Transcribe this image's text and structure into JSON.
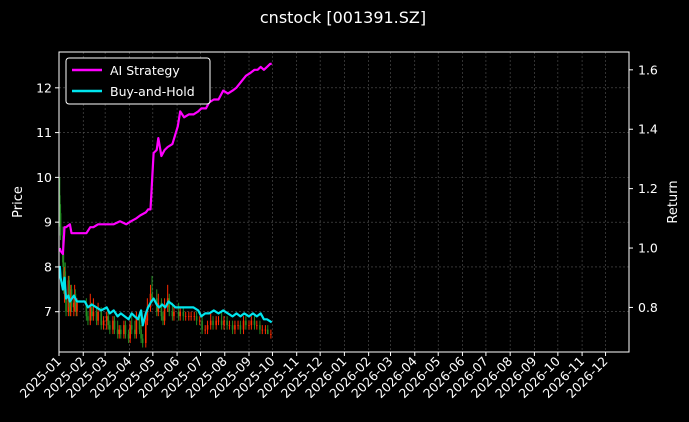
{
  "chart_data": {
    "type": "line",
    "title": "cnstock [001391.SZ]",
    "ylabel_left": "Price",
    "ylabel_right": "Return",
    "ylim_left": [
      6.1,
      12.8
    ],
    "ylim_right": [
      0.65,
      1.66
    ],
    "yticks_left": [
      7,
      8,
      9,
      10,
      11,
      12
    ],
    "yticks_right": [
      0.8,
      1.0,
      1.2,
      1.4,
      1.6
    ],
    "ytick_labels_right": [
      "0.8",
      "1.0",
      "1.2",
      "1.4",
      "1.6"
    ],
    "x_start": "2025-01-01",
    "x_end": "2026-12-31",
    "xtick_labels": [
      "2025-01",
      "2025-02",
      "2025-03",
      "2025-04",
      "2025-05",
      "2025-06",
      "2025-07",
      "2025-08",
      "2025-09",
      "2025-10",
      "2025-11",
      "2025-12",
      "2026-01",
      "2026-02",
      "2026-03",
      "2026-04",
      "2026-05",
      "2026-06",
      "2026-07",
      "2026-08",
      "2026-09",
      "2026-10",
      "2026-11",
      "2026-12"
    ],
    "grid": true,
    "legend_position": "upper-left",
    "colors": {
      "ai_strategy": "#ff00ff",
      "buy_and_hold": "#00e5ee",
      "candle_up": "#ff2a00",
      "candle_down": "#228b22",
      "grid": "#555555",
      "axes": "#ffffff"
    },
    "series": [
      {
        "name": "AI Strategy",
        "axis": "right",
        "points": [
          [
            "2025-01-02",
            1.0
          ],
          [
            "2025-01-03",
            0.99
          ],
          [
            "2025-01-06",
            0.98
          ],
          [
            "2025-01-08",
            1.07
          ],
          [
            "2025-01-10",
            1.07
          ],
          [
            "2025-01-15",
            1.08
          ],
          [
            "2025-01-17",
            1.05
          ],
          [
            "2025-01-22",
            1.05
          ],
          [
            "2025-02-05",
            1.05
          ],
          [
            "2025-02-10",
            1.07
          ],
          [
            "2025-02-14",
            1.07
          ],
          [
            "2025-02-20",
            1.08
          ],
          [
            "2025-03-05",
            1.08
          ],
          [
            "2025-03-12",
            1.08
          ],
          [
            "2025-03-20",
            1.09
          ],
          [
            "2025-03-28",
            1.08
          ],
          [
            "2025-04-03",
            1.09
          ],
          [
            "2025-04-10",
            1.1
          ],
          [
            "2025-04-15",
            1.11
          ],
          [
            "2025-04-22",
            1.12
          ],
          [
            "2025-04-25",
            1.13
          ],
          [
            "2025-04-28",
            1.13
          ],
          [
            "2025-05-02",
            1.32
          ],
          [
            "2025-05-06",
            1.33
          ],
          [
            "2025-05-08",
            1.37
          ],
          [
            "2025-05-12",
            1.31
          ],
          [
            "2025-05-16",
            1.33
          ],
          [
            "2025-05-20",
            1.34
          ],
          [
            "2025-05-26",
            1.35
          ],
          [
            "2025-06-02",
            1.41
          ],
          [
            "2025-06-05",
            1.46
          ],
          [
            "2025-06-10",
            1.44
          ],
          [
            "2025-06-16",
            1.45
          ],
          [
            "2025-06-22",
            1.45
          ],
          [
            "2025-06-28",
            1.46
          ],
          [
            "2025-07-02",
            1.47
          ],
          [
            "2025-07-08",
            1.47
          ],
          [
            "2025-07-12",
            1.49
          ],
          [
            "2025-07-18",
            1.5
          ],
          [
            "2025-07-24",
            1.5
          ],
          [
            "2025-07-30",
            1.53
          ],
          [
            "2025-08-05",
            1.52
          ],
          [
            "2025-08-11",
            1.53
          ],
          [
            "2025-08-16",
            1.54
          ],
          [
            "2025-08-22",
            1.56
          ],
          [
            "2025-08-28",
            1.58
          ],
          [
            "2025-09-03",
            1.59
          ],
          [
            "2025-09-08",
            1.6
          ],
          [
            "2025-09-12",
            1.6
          ],
          [
            "2025-09-16",
            1.61
          ],
          [
            "2025-09-20",
            1.6
          ],
          [
            "2025-09-24",
            1.61
          ],
          [
            "2025-09-28",
            1.62
          ],
          [
            "2025-09-30",
            1.62
          ]
        ]
      },
      {
        "name": "Buy-and-Hold",
        "axis": "right",
        "points": [
          [
            "2025-01-02",
            0.94
          ],
          [
            "2025-01-03",
            0.9
          ],
          [
            "2025-01-06",
            0.86
          ],
          [
            "2025-01-08",
            0.9
          ],
          [
            "2025-01-10",
            0.83
          ],
          [
            "2025-01-13",
            0.84
          ],
          [
            "2025-01-15",
            0.82
          ],
          [
            "2025-01-20",
            0.84
          ],
          [
            "2025-01-24",
            0.82
          ],
          [
            "2025-02-03",
            0.82
          ],
          [
            "2025-02-07",
            0.8
          ],
          [
            "2025-02-12",
            0.81
          ],
          [
            "2025-02-18",
            0.8
          ],
          [
            "2025-02-24",
            0.79
          ],
          [
            "2025-03-03",
            0.8
          ],
          [
            "2025-03-07",
            0.78
          ],
          [
            "2025-03-12",
            0.79
          ],
          [
            "2025-03-17",
            0.77
          ],
          [
            "2025-03-21",
            0.78
          ],
          [
            "2025-03-26",
            0.77
          ],
          [
            "2025-03-31",
            0.76
          ],
          [
            "2025-04-04",
            0.78
          ],
          [
            "2025-04-08",
            0.77
          ],
          [
            "2025-04-12",
            0.76
          ],
          [
            "2025-04-16",
            0.79
          ],
          [
            "2025-04-18",
            0.74
          ],
          [
            "2025-04-22",
            0.78
          ],
          [
            "2025-04-25",
            0.8
          ],
          [
            "2025-04-29",
            0.82
          ],
          [
            "2025-05-02",
            0.83
          ],
          [
            "2025-05-06",
            0.81
          ],
          [
            "2025-05-09",
            0.8
          ],
          [
            "2025-05-13",
            0.81
          ],
          [
            "2025-05-17",
            0.8
          ],
          [
            "2025-05-21",
            0.82
          ],
          [
            "2025-05-26",
            0.81
          ],
          [
            "2025-05-30",
            0.8
          ],
          [
            "2025-06-04",
            0.8
          ],
          [
            "2025-06-10",
            0.8
          ],
          [
            "2025-06-16",
            0.8
          ],
          [
            "2025-06-22",
            0.8
          ],
          [
            "2025-06-28",
            0.79
          ],
          [
            "2025-07-02",
            0.77
          ],
          [
            "2025-07-07",
            0.78
          ],
          [
            "2025-07-12",
            0.78
          ],
          [
            "2025-07-18",
            0.79
          ],
          [
            "2025-07-24",
            0.78
          ],
          [
            "2025-07-30",
            0.79
          ],
          [
            "2025-08-05",
            0.78
          ],
          [
            "2025-08-11",
            0.77
          ],
          [
            "2025-08-16",
            0.78
          ],
          [
            "2025-08-21",
            0.77
          ],
          [
            "2025-08-26",
            0.78
          ],
          [
            "2025-09-01",
            0.77
          ],
          [
            "2025-09-06",
            0.78
          ],
          [
            "2025-09-11",
            0.77
          ],
          [
            "2025-09-16",
            0.78
          ],
          [
            "2025-09-20",
            0.76
          ],
          [
            "2025-09-24",
            0.76
          ],
          [
            "2025-09-30",
            0.75
          ]
        ]
      }
    ],
    "candles": [
      [
        "2025-01-02",
        9.6,
        10.0,
        8.9,
        9.2
      ],
      [
        "2025-01-03",
        9.2,
        9.4,
        8.6,
        8.7
      ],
      [
        "2025-01-06",
        8.7,
        8.9,
        8.0,
        8.1
      ],
      [
        "2025-01-07",
        8.1,
        8.3,
        7.4,
        7.5
      ],
      [
        "2025-01-08",
        7.5,
        8.0,
        7.2,
        7.9
      ],
      [
        "2025-01-09",
        7.9,
        8.1,
        7.3,
        7.4
      ],
      [
        "2025-01-10",
        7.4,
        7.5,
        6.9,
        7.0
      ],
      [
        "2025-01-13",
        7.0,
        7.8,
        6.9,
        7.7
      ],
      [
        "2025-01-14",
        7.7,
        7.8,
        7.1,
        7.2
      ],
      [
        "2025-01-15",
        7.2,
        7.4,
        6.9,
        7.0
      ],
      [
        "2025-01-16",
        7.0,
        7.6,
        6.9,
        7.5
      ],
      [
        "2025-01-17",
        7.5,
        7.6,
        7.0,
        7.1
      ],
      [
        "2025-01-20",
        7.1,
        7.3,
        6.9,
        7.2
      ],
      [
        "2025-01-21",
        7.2,
        7.6,
        7.0,
        7.4
      ],
      [
        "2025-01-22",
        7.4,
        7.5,
        7.0,
        7.1
      ],
      [
        "2025-01-23",
        7.1,
        7.2,
        6.9,
        7.0
      ],
      [
        "2025-01-24",
        7.0,
        7.3,
        6.9,
        7.2
      ],
      [
        "2025-02-05",
        7.2,
        7.3,
        6.8,
        6.9
      ],
      [
        "2025-02-07",
        6.9,
        7.0,
        6.7,
        6.8
      ],
      [
        "2025-02-10",
        6.8,
        7.4,
        6.7,
        7.1
      ],
      [
        "2025-02-12",
        7.1,
        7.2,
        6.8,
        6.9
      ],
      [
        "2025-02-14",
        6.9,
        7.3,
        6.8,
        7.0
      ],
      [
        "2025-02-18",
        7.0,
        7.1,
        6.7,
        6.8
      ],
      [
        "2025-02-20",
        6.8,
        7.2,
        6.7,
        7.0
      ],
      [
        "2025-02-24",
        7.0,
        7.1,
        6.6,
        6.7
      ],
      [
        "2025-02-27",
        6.7,
        6.9,
        6.6,
        6.8
      ],
      [
        "2025-03-03",
        6.8,
        7.0,
        6.6,
        6.9
      ],
      [
        "2025-03-05",
        6.9,
        7.0,
        6.6,
        6.7
      ],
      [
        "2025-03-07",
        6.7,
        6.8,
        6.5,
        6.6
      ],
      [
        "2025-03-11",
        6.6,
        6.9,
        6.5,
        6.8
      ],
      [
        "2025-03-13",
        6.8,
        6.9,
        6.5,
        6.6
      ],
      [
        "2025-03-17",
        6.6,
        6.8,
        6.4,
        6.5
      ],
      [
        "2025-03-19",
        6.5,
        6.7,
        6.4,
        6.6
      ],
      [
        "2025-03-21",
        6.6,
        6.7,
        6.4,
        6.5
      ],
      [
        "2025-03-25",
        6.5,
        6.8,
        6.4,
        6.7
      ],
      [
        "2025-03-27",
        6.7,
        6.8,
        6.4,
        6.5
      ],
      [
        "2025-03-31",
        6.5,
        6.6,
        6.3,
        6.4
      ],
      [
        "2025-04-02",
        6.4,
        6.8,
        6.3,
        6.7
      ],
      [
        "2025-04-04",
        6.7,
        6.9,
        6.5,
        6.6
      ],
      [
        "2025-04-08",
        6.6,
        6.8,
        6.4,
        6.5
      ],
      [
        "2025-04-10",
        6.5,
        7.0,
        6.4,
        6.9
      ],
      [
        "2025-04-14",
        6.9,
        7.0,
        6.5,
        6.6
      ],
      [
        "2025-04-16",
        6.6,
        6.7,
        6.3,
        6.4
      ],
      [
        "2025-04-18",
        6.4,
        6.5,
        6.2,
        6.3
      ],
      [
        "2025-04-22",
        6.3,
        6.9,
        6.2,
        6.8
      ],
      [
        "2025-04-24",
        6.8,
        7.3,
        6.7,
        7.1
      ],
      [
        "2025-04-28",
        7.1,
        7.6,
        7.0,
        7.4
      ],
      [
        "2025-04-30",
        7.4,
        7.8,
        7.2,
        7.3
      ],
      [
        "2025-05-06",
        7.3,
        7.5,
        6.9,
        7.0
      ],
      [
        "2025-05-08",
        7.0,
        7.4,
        6.9,
        7.2
      ],
      [
        "2025-05-12",
        7.2,
        7.3,
        6.8,
        6.9
      ],
      [
        "2025-05-14",
        6.9,
        7.0,
        6.7,
        6.8
      ],
      [
        "2025-05-16",
        6.8,
        7.3,
        6.7,
        7.1
      ],
      [
        "2025-05-20",
        7.1,
        7.6,
        7.0,
        7.3
      ],
      [
        "2025-05-22",
        7.3,
        7.4,
        6.9,
        7.0
      ],
      [
        "2025-05-26",
        7.0,
        7.2,
        6.8,
        6.9
      ],
      [
        "2025-05-28",
        6.9,
        7.1,
        6.8,
        7.0
      ],
      [
        "2025-06-03",
        7.0,
        7.2,
        6.8,
        6.9
      ],
      [
        "2025-06-05",
        6.9,
        7.1,
        6.8,
        7.0
      ],
      [
        "2025-06-09",
        7.0,
        7.1,
        6.8,
        6.9
      ],
      [
        "2025-06-12",
        6.9,
        7.0,
        6.8,
        6.9
      ],
      [
        "2025-06-16",
        6.9,
        7.0,
        6.8,
        6.9
      ],
      [
        "2025-06-19",
        6.9,
        7.0,
        6.8,
        6.9
      ],
      [
        "2025-06-23",
        6.9,
        7.0,
        6.8,
        6.9
      ],
      [
        "2025-06-26",
        6.9,
        7.0,
        6.7,
        6.8
      ],
      [
        "2025-06-30",
        6.8,
        6.9,
        6.7,
        6.8
      ],
      [
        "2025-07-03",
        6.8,
        6.9,
        6.5,
        6.6
      ],
      [
        "2025-07-07",
        6.6,
        6.7,
        6.5,
        6.6
      ],
      [
        "2025-07-10",
        6.6,
        6.8,
        6.5,
        6.7
      ],
      [
        "2025-07-14",
        6.7,
        7.0,
        6.6,
        6.8
      ],
      [
        "2025-07-17",
        6.8,
        6.9,
        6.6,
        6.7
      ],
      [
        "2025-07-21",
        6.7,
        6.9,
        6.6,
        6.8
      ],
      [
        "2025-07-24",
        6.8,
        6.9,
        6.7,
        6.8
      ],
      [
        "2025-07-28",
        6.8,
        7.0,
        6.6,
        6.7
      ],
      [
        "2025-07-31",
        6.7,
        6.9,
        6.6,
        6.8
      ],
      [
        "2025-08-04",
        6.8,
        6.9,
        6.6,
        6.7
      ],
      [
        "2025-08-07",
        6.7,
        6.8,
        6.6,
        6.7
      ],
      [
        "2025-08-11",
        6.7,
        6.8,
        6.5,
        6.6
      ],
      [
        "2025-08-14",
        6.6,
        6.8,
        6.5,
        6.7
      ],
      [
        "2025-08-18",
        6.7,
        6.8,
        6.6,
        6.7
      ],
      [
        "2025-08-21",
        6.7,
        6.8,
        6.5,
        6.6
      ],
      [
        "2025-08-25",
        6.6,
        6.9,
        6.5,
        6.8
      ],
      [
        "2025-08-28",
        6.8,
        6.9,
        6.6,
        6.7
      ],
      [
        "2025-09-01",
        6.7,
        6.8,
        6.6,
        6.7
      ],
      [
        "2025-09-04",
        6.7,
        6.9,
        6.6,
        6.8
      ],
      [
        "2025-09-08",
        6.8,
        6.9,
        6.6,
        6.7
      ],
      [
        "2025-09-11",
        6.7,
        6.8,
        6.6,
        6.7
      ],
      [
        "2025-09-15",
        6.7,
        6.8,
        6.5,
        6.6
      ],
      [
        "2025-09-18",
        6.6,
        6.7,
        6.5,
        6.6
      ],
      [
        "2025-09-22",
        6.6,
        6.7,
        6.5,
        6.6
      ],
      [
        "2025-09-25",
        6.6,
        6.7,
        6.5,
        6.5
      ],
      [
        "2025-09-29",
        6.5,
        6.6,
        6.4,
        6.5
      ]
    ]
  }
}
